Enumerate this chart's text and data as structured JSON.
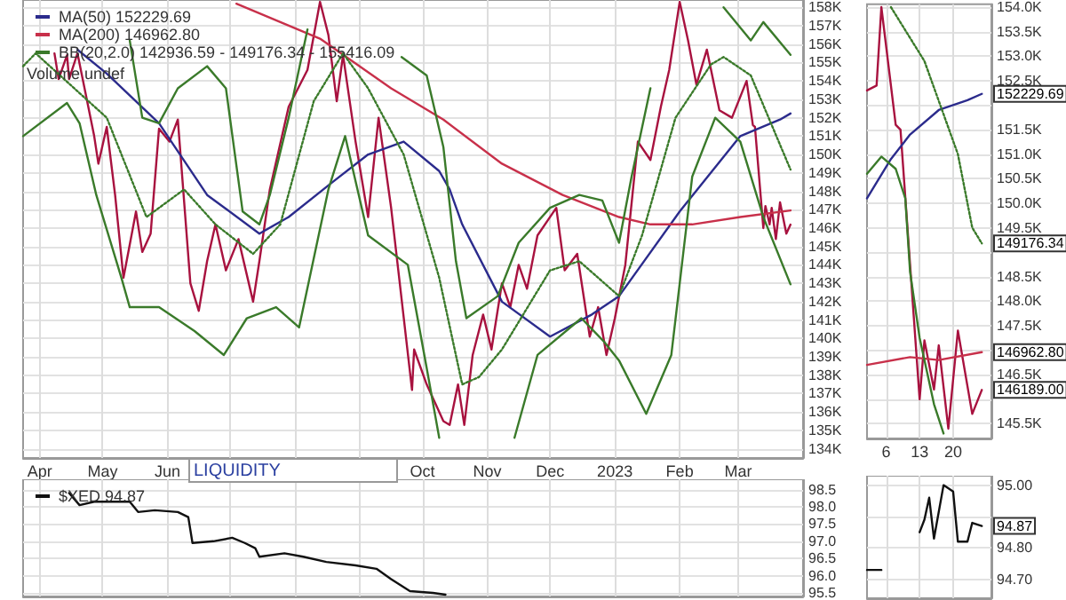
{
  "chart_data": [
    {
      "type": "line",
      "legend": "top left",
      "grid": true,
      "marker": "none",
      "annotations": [
        "LIQUIDITY",
        "Volume undef"
      ],
      "xlim": [
        "2022-03-24",
        "2023-04-01"
      ],
      "xticks": [
        {
          "value": "2022-04-01",
          "label": "Apr"
        },
        {
          "value": "2022-05-01",
          "label": "May"
        },
        {
          "value": "2022-06-01",
          "label": "Jun"
        },
        {
          "value": "2022-07-01",
          "label": null
        },
        {
          "value": "2022-08-01",
          "label": null
        },
        {
          "value": "2022-09-01",
          "label": null
        },
        {
          "value": "2022-10-01",
          "label": "Oct"
        },
        {
          "value": "2022-11-01",
          "label": "Nov"
        },
        {
          "value": "2022-12-01",
          "label": "Dec"
        },
        {
          "value": "2023-01-01",
          "label": "2023"
        },
        {
          "value": "2023-02-01",
          "label": "Feb"
        },
        {
          "value": "2023-03-01",
          "label": "Mar"
        }
      ],
      "ylim": [
        133.5,
        158.4
      ],
      "yticks": [
        {
          "value": 134,
          "label": "134K"
        },
        {
          "value": 135,
          "label": "135K"
        },
        {
          "value": 136,
          "label": "136K"
        },
        {
          "value": 137,
          "label": "137K"
        },
        {
          "value": 138,
          "label": "138K"
        },
        {
          "value": 139,
          "label": "139K"
        },
        {
          "value": 140,
          "label": "140K"
        },
        {
          "value": 141,
          "label": "141K"
        },
        {
          "value": 142,
          "label": "142K"
        },
        {
          "value": 143,
          "label": "143K"
        },
        {
          "value": 144,
          "label": "144K"
        },
        {
          "value": 145,
          "label": "145K"
        },
        {
          "value": 146,
          "label": "146K"
        },
        {
          "value": 147,
          "label": "147K"
        },
        {
          "value": 148,
          "label": "148K"
        },
        {
          "value": 149,
          "label": "149K"
        },
        {
          "value": 150,
          "label": "150K"
        },
        {
          "value": 151,
          "label": "151K"
        },
        {
          "value": 152,
          "label": "152K"
        },
        {
          "value": 153,
          "label": "153K"
        },
        {
          "value": 154,
          "label": "154K"
        },
        {
          "value": 155,
          "label": "155K"
        },
        {
          "value": 156,
          "label": "156K"
        },
        {
          "value": 157,
          "label": "157K"
        },
        {
          "value": 158,
          "label": "158K"
        }
      ],
      "series": [
        {
          "color": "#a8123f",
          "x": [
            "2022-04-08",
            "2022-04-10",
            "2022-04-14",
            "2022-04-15",
            "2022-04-19",
            "2022-04-27",
            "2022-04-29",
            "2022-05-03",
            "2022-05-07",
            "2022-05-11",
            "2022-05-17",
            "2022-05-20",
            "2022-05-24",
            "2022-05-28",
            "2022-06-02",
            "2022-06-06",
            "2022-06-12",
            "2022-06-16",
            "2022-06-20",
            "2022-06-24",
            "2022-06-29",
            "2022-07-05",
            "2022-07-12",
            "2022-07-15",
            "2022-07-20",
            "2022-07-29",
            "2022-08-07",
            "2022-08-13",
            "2022-08-17",
            "2022-08-21",
            "2022-08-24",
            "2022-08-30",
            "2022-09-05",
            "2022-09-10",
            "2022-09-16",
            "2022-09-26",
            "2022-09-27",
            "2022-10-03",
            "2022-10-11",
            "2022-10-14",
            "2022-10-18",
            "2022-10-21",
            "2022-10-25",
            "2022-10-30",
            "2022-11-03",
            "2022-11-08",
            "2022-11-12",
            "2022-11-16",
            "2022-11-20",
            "2022-11-25",
            "2022-12-04",
            "2022-12-08",
            "2022-12-14",
            "2022-12-20",
            "2022-12-24",
            "2022-12-28",
            "2023-01-01",
            "2023-01-06",
            "2023-01-12",
            "2023-01-18",
            "2023-01-23",
            "2023-01-27",
            "2023-02-01",
            "2023-02-05",
            "2023-02-09",
            "2023-02-14",
            "2023-02-20",
            "2023-02-26",
            "2023-03-05",
            "2023-03-08",
            "2023-03-09",
            "2023-03-13",
            "2023-03-14",
            "2023-03-16",
            "2023-03-17",
            "2023-03-19",
            "2023-03-21",
            "2023-03-24",
            "2023-03-26"
          ],
          "values": [
            155.5,
            154.1,
            155.4,
            154.1,
            155.5,
            151.0,
            149.5,
            151.5,
            147.8,
            143.3,
            146.9,
            144.7,
            145.7,
            151.4,
            150.7,
            151.9,
            143.0,
            141.5,
            144.2,
            146.2,
            143.7,
            145.4,
            142.0,
            144.2,
            148.1,
            152.6,
            154.6,
            158.3,
            156.5,
            152.9,
            155.4,
            150.7,
            146.6,
            152.0,
            147.1,
            137.2,
            139.4,
            137.5,
            135.5,
            135.3,
            137.5,
            135.3,
            139.1,
            141.3,
            139.4,
            143.0,
            141.7,
            144.0,
            142.7,
            145.6,
            147.1,
            143.7,
            144.6,
            140.1,
            141.7,
            139.1,
            141.1,
            144.0,
            150.7,
            149.7,
            152.6,
            154.6,
            158.3,
            156.2,
            153.8,
            155.7,
            152.4,
            152.0,
            154.0,
            151.6,
            151.5,
            146.0,
            147.2,
            146.2,
            147.1,
            145.4,
            147.4,
            145.7,
            146.19
          ]
        },
        {
          "name": "MA(50) 152229.69",
          "color": "#2b2b8c",
          "x": [
            "2022-04-19",
            "2022-05-03",
            "2022-05-28",
            "2022-06-20",
            "2022-07-15",
            "2022-07-29",
            "2022-08-19",
            "2022-09-05",
            "2022-09-22",
            "2022-10-09",
            "2022-10-14",
            "2022-10-20",
            "2022-11-08",
            "2022-12-01",
            "2022-12-21",
            "2023-01-03",
            "2023-02-01",
            "2023-03-02",
            "2023-03-21",
            "2023-03-26"
          ],
          "values": [
            155.7,
            154.4,
            151.7,
            147.8,
            145.7,
            146.6,
            148.5,
            150.0,
            150.7,
            149.1,
            148.1,
            146.2,
            142.0,
            140.1,
            141.3,
            142.3,
            146.9,
            151.0,
            151.9,
            152.23
          ]
        },
        {
          "name": "MA(200) 146962.80",
          "color": "#c8304a",
          "x": [
            "2022-07-04",
            "2022-08-13",
            "2022-09-16",
            "2022-10-11",
            "2022-11-08",
            "2022-12-07",
            "2023-01-03",
            "2023-01-18",
            "2023-02-07",
            "2023-03-02",
            "2023-03-26"
          ],
          "values": [
            158.2,
            156.3,
            153.6,
            151.9,
            149.5,
            147.8,
            146.6,
            146.2,
            146.2,
            146.6,
            146.96
          ]
        },
        {
          "name": "BB(20,2.0) 142936.59 - 149176.34 - 155416.09",
          "color": "#3a7a2a",
          "x": [
            "2022-05-14",
            "2022-05-20",
            "2022-05-28",
            "2022-06-06",
            "2022-06-20",
            "2022-06-29",
            "2022-07-07",
            "2022-07-15",
            "2022-07-20",
            "2022-07-29",
            "2022-08-07",
            "2022-08-20",
            "2022-09-21",
            "2022-10-03",
            "2022-10-11",
            "2022-10-17",
            "2022-10-22",
            "2022-11-06",
            "2022-11-16",
            "2022-12-01",
            "2022-12-15",
            "2022-12-26",
            "2023-01-03",
            "2023-01-09",
            "2023-01-18",
            "2023-02-05",
            "2023-02-22",
            "2023-03-07",
            "2023-03-13",
            "2023-03-26"
          ],
          "values": [
            156.2,
            152.0,
            151.7,
            153.6,
            154.8,
            153.6,
            146.9,
            146.2,
            147.8,
            152.0,
            156.8,
            null,
            155.3,
            154.3,
            150.4,
            144.2,
            141.1,
            142.3,
            145.2,
            147.1,
            147.8,
            147.5,
            145.2,
            148.8,
            153.6,
            null,
            158.0,
            156.2,
            157.2,
            155.42
          ]
        },
        {
          "color": "#3a7a2a",
          "line_style": "dotted",
          "x": [
            "2022-03-24",
            "2022-03-30",
            "2022-05-03",
            "2022-05-22",
            "2022-06-09",
            "2022-06-24",
            "2022-07-12",
            "2022-07-25",
            "2022-08-10",
            "2022-08-24",
            "2022-09-05",
            "2022-09-22",
            "2022-10-09",
            "2022-10-20",
            "2022-10-28",
            "2022-11-08",
            "2022-12-01",
            "2022-12-15",
            "2023-01-03",
            "2023-01-14",
            "2023-01-30",
            "2023-02-16",
            "2023-02-22",
            "2023-03-07",
            "2023-03-26"
          ],
          "values": [
            154.8,
            155.5,
            152.0,
            146.6,
            148.1,
            146.2,
            144.6,
            146.2,
            152.9,
            155.5,
            153.6,
            150.0,
            143.3,
            137.5,
            137.9,
            139.4,
            143.7,
            144.2,
            142.3,
            145.6,
            152.0,
            154.9,
            155.3,
            154.3,
            149.18
          ]
        },
        {
          "color": "#3a7a2a",
          "x": [
            "2022-03-24",
            "2022-04-14",
            "2022-04-20",
            "2022-04-28",
            "2022-05-10",
            "2022-05-14",
            "2022-05-28",
            "2022-06-14",
            "2022-06-28",
            "2022-07-09",
            "2022-07-23",
            "2022-08-03",
            "2022-08-17",
            "2022-08-25",
            "2022-09-05",
            "2022-09-24",
            "2022-10-03",
            "2022-10-09",
            "2022-10-20",
            "2022-11-14",
            "2022-11-25",
            "2022-12-16",
            "2022-12-27",
            "2023-01-03",
            "2023-01-16",
            "2023-01-28",
            "2023-02-07",
            "2023-02-18",
            "2023-03-02",
            "2023-03-13",
            "2023-03-26"
          ],
          "values": [
            151.0,
            152.8,
            151.7,
            147.8,
            143.3,
            141.7,
            141.7,
            140.4,
            139.1,
            141.1,
            141.7,
            140.6,
            148.1,
            151.0,
            145.6,
            144.0,
            138.4,
            134.6,
            null,
            134.6,
            139.1,
            141.1,
            139.8,
            138.8,
            135.9,
            139.1,
            148.8,
            152.0,
            150.7,
            146.6,
            142.94
          ]
        }
      ]
    },
    {
      "type": "line",
      "legend": false,
      "grid": true,
      "marker": "none",
      "annotations": [
        {
          "text": "152229.69",
          "x": "2023-03-26",
          "y": 152.23
        },
        {
          "text": "149176.34",
          "x": "2023-03-26",
          "y": 149.18
        },
        {
          "text": "146962.80",
          "x": "2023-03-26",
          "y": 146.96
        },
        {
          "text": "146189.00",
          "x": "2023-03-26",
          "y": 146.19
        }
      ],
      "xlim": [
        "2023-03-02",
        "2023-03-28"
      ],
      "xticks": [
        {
          "value": "2023-03-06",
          "label": "6"
        },
        {
          "value": "2023-03-13",
          "label": "13"
        },
        {
          "value": "2023-03-20",
          "label": "20"
        }
      ],
      "ylim": [
        145.2,
        154.06
      ],
      "yticks": [
        {
          "value": 145.5,
          "label": "145.5K"
        },
        {
          "value": 146,
          "label": null
        },
        {
          "value": 146.5,
          "label": "146.5K"
        },
        {
          "value": 147,
          "label": null
        },
        {
          "value": 147.5,
          "label": "147.5K"
        },
        {
          "value": 148,
          "label": "148.0K"
        },
        {
          "value": 148.5,
          "label": "148.5K"
        },
        {
          "value": 149,
          "label": null
        },
        {
          "value": 149.5,
          "label": "149.5K"
        },
        {
          "value": 150,
          "label": "150.0K"
        },
        {
          "value": 150.5,
          "label": "150.5K"
        },
        {
          "value": 151,
          "label": "151.0K"
        },
        {
          "value": 151.5,
          "label": "151.5K"
        },
        {
          "value": 152,
          "label": null
        },
        {
          "value": 152.5,
          "label": "152.5K"
        },
        {
          "value": 153,
          "label": "153.0K"
        },
        {
          "value": 153.5,
          "label": "153.5K"
        },
        {
          "value": 154,
          "label": "154.0K"
        }
      ],
      "series": [
        {
          "color": "#a8123f",
          "x": [
            "2023-03-02",
            "2023-03-04",
            "2023-03-05",
            "2023-03-08",
            "2023-03-09",
            "2023-03-13",
            "2023-03-14",
            "2023-03-16",
            "2023-03-17",
            "2023-03-19",
            "2023-03-21",
            "2023-03-24",
            "2023-03-26"
          ],
          "values": [
            152.3,
            152.4,
            154.0,
            151.6,
            151.5,
            146.0,
            147.2,
            146.2,
            147.1,
            145.4,
            147.4,
            145.7,
            146.19
          ]
        },
        {
          "color": "#2b2b8c",
          "x": [
            "2023-03-02",
            "2023-03-07",
            "2023-03-11",
            "2023-03-17",
            "2023-03-23",
            "2023-03-26"
          ],
          "values": [
            150.1,
            150.9,
            151.4,
            151.9,
            152.1,
            152.23
          ]
        },
        {
          "color": "#c8304a",
          "x": [
            "2023-03-02",
            "2023-03-11",
            "2023-03-17",
            "2023-03-26"
          ],
          "values": [
            146.7,
            146.86,
            146.8,
            146.96
          ]
        },
        {
          "color": "#3a7a2a",
          "line_style": "dotted",
          "x": [
            "2023-03-07",
            "2023-03-14",
            "2023-03-21",
            "2023-03-24",
            "2023-03-26"
          ],
          "values": [
            154.0,
            152.9,
            151.0,
            149.5,
            149.18
          ]
        },
        {
          "color": "#3a7a2a",
          "x": [
            "2023-03-02",
            "2023-03-05",
            "2023-03-08",
            "2023-03-10",
            "2023-03-11",
            "2023-03-13",
            "2023-03-16",
            "2023-03-18"
          ],
          "values": [
            150.6,
            150.95,
            150.7,
            150.1,
            148.6,
            147.25,
            145.9,
            145.3
          ]
        }
      ]
    },
    {
      "type": "line",
      "legend": "top left",
      "grid": true,
      "marker": "none",
      "tick_labels": "y",
      "xlim": [
        "2022-03-24",
        "2023-04-01"
      ],
      "xticks": [
        {
          "value": "2022-04-01",
          "label": null
        },
        {
          "value": "2022-05-01",
          "label": null
        },
        {
          "value": "2022-06-01",
          "label": null
        },
        {
          "value": "2022-07-01",
          "label": null
        },
        {
          "value": "2022-08-01",
          "label": null
        },
        {
          "value": "2022-09-01",
          "label": null
        },
        {
          "value": "2022-10-01",
          "label": null
        },
        {
          "value": "2022-11-01",
          "label": null
        },
        {
          "value": "2022-12-01",
          "label": null
        },
        {
          "value": "2023-01-01",
          "label": null
        },
        {
          "value": "2023-02-01",
          "label": null
        },
        {
          "value": "2023-03-01",
          "label": null
        }
      ],
      "ylim": [
        95.4,
        98.8
      ],
      "yticks": [
        95.5,
        {
          "value": 96,
          "label": "96.0"
        },
        96.5,
        {
          "value": 97,
          "label": "97.0"
        },
        97.5,
        {
          "value": 98,
          "label": "98.0"
        },
        98.5
      ],
      "series": [
        {
          "name": "$XED 94.87",
          "color": "#111111",
          "x": [
            "2022-04-15",
            "2022-04-20",
            "2022-04-27",
            "2022-05-14",
            "2022-05-18",
            "2022-05-26",
            "2022-06-06",
            "2022-06-11",
            "2022-06-13",
            "2022-06-23",
            "2022-07-02",
            "2022-07-08",
            "2022-07-13",
            "2022-07-15",
            "2022-07-27",
            "2022-08-05",
            "2022-08-16",
            "2022-08-30",
            "2022-09-09",
            "2022-09-16",
            "2022-09-25",
            "2022-10-06",
            "2022-10-12"
          ],
          "values": [
            98.4,
            98.05,
            98.15,
            98.15,
            97.85,
            97.9,
            97.85,
            97.7,
            96.95,
            97.0,
            97.1,
            96.95,
            96.8,
            96.55,
            96.65,
            96.55,
            96.4,
            96.3,
            96.2,
            95.9,
            95.55,
            95.5,
            95.45
          ]
        }
      ]
    },
    {
      "type": "line",
      "legend": false,
      "grid": true,
      "marker": "none",
      "tick_labels": "y",
      "annotations": [
        {
          "text": "94.87",
          "x": "2023-03-26",
          "y": 94.87
        }
      ],
      "xlim": [
        "2023-03-02",
        "2023-03-28"
      ],
      "xticks": [
        {
          "value": "2023-03-06",
          "label": null
        },
        {
          "value": "2023-03-13",
          "label": null
        },
        {
          "value": "2023-03-20",
          "label": null
        }
      ],
      "ylim": [
        94.64,
        95.03
      ],
      "yticks": [
        {
          "value": 94.7,
          "label": "94.70"
        },
        {
          "value": 94.8,
          "label": "94.80"
        },
        {
          "value": 94.9,
          "label": null
        },
        {
          "value": 95,
          "label": "95.00"
        }
      ],
      "series": [
        {
          "color": "#111111",
          "x": [
            "2023-03-02",
            "2023-03-05",
            "2023-03-06",
            "2023-03-11",
            "2023-03-13",
            "2023-03-14",
            "2023-03-15",
            "2023-03-16",
            "2023-03-18",
            "2023-03-20",
            "2023-03-21",
            "2023-03-23",
            "2023-03-24",
            "2023-03-26"
          ],
          "values": [
            94.73,
            94.73,
            null,
            null,
            94.85,
            94.89,
            94.96,
            94.83,
            95.0,
            94.98,
            94.82,
            94.82,
            94.88,
            94.87
          ]
        }
      ]
    }
  ]
}
